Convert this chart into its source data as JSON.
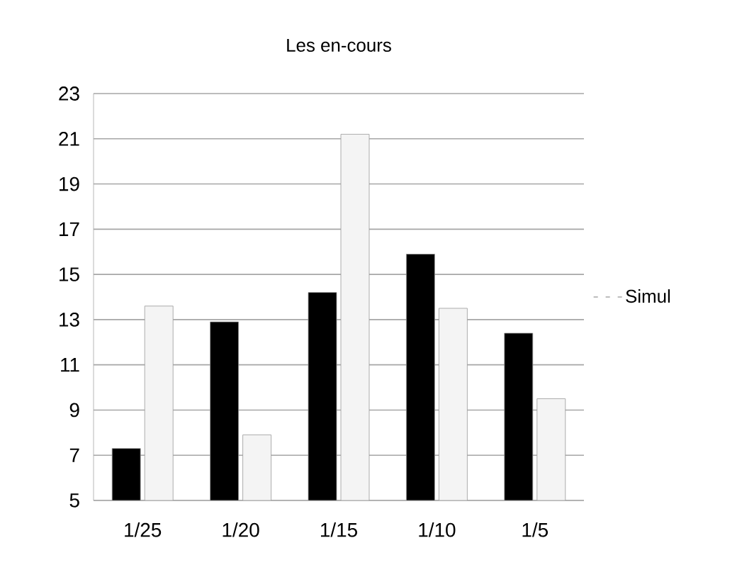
{
  "chart_data": {
    "type": "bar",
    "title": "Les en-cours",
    "categories": [
      "1/25",
      "1/20",
      "1/15",
      "1/10",
      "1/5"
    ],
    "series": [
      {
        "color": "#000000",
        "values": [
          7.3,
          12.9,
          14.2,
          15.9,
          12.4
        ]
      },
      {
        "name": "Simul",
        "color": "#f4f4f4",
        "values": [
          13.6,
          7.9,
          21.2,
          13.5,
          9.5
        ]
      }
    ],
    "ylim": [
      5,
      23
    ],
    "yticks": [
      5,
      7,
      9,
      11,
      13,
      15,
      17,
      19,
      21,
      23
    ],
    "grid": "y",
    "legend": "right"
  }
}
